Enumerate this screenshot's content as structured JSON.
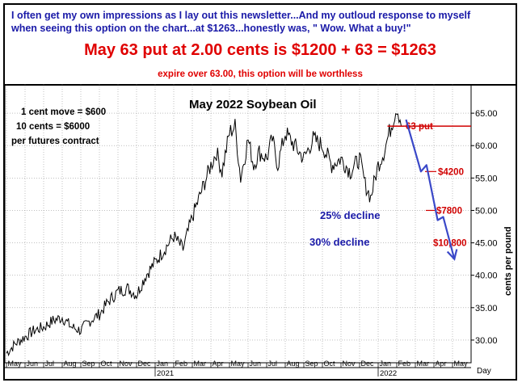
{
  "header": {
    "line1": "I often get my own impressions as I lay out this newsletter...And my outloud response to myself",
    "line2": "when seeing this option on the chart...at $1263...honestly was, \" Wow. What a buy!\"",
    "headline": "May 63 put at 2.00 cents is $1200 + 63 = $1263",
    "subline": "expire over 63.00, this option will be worthless"
  },
  "chart_data": {
    "type": "line",
    "title": "May 2022 Soybean Oil",
    "ylabel": "cents per pound",
    "xlabel": "Day",
    "ylim": [
      26.5,
      69.5
    ],
    "yticks": [
      30,
      35,
      40,
      45,
      50,
      55,
      60,
      65
    ],
    "ytick_labels": [
      "30.00",
      "35.00",
      "40.00",
      "45.00",
      "50.00",
      "55.00",
      "60.00",
      "65.00"
    ],
    "month_labels": [
      "May",
      "Jun",
      "Jul",
      "Aug",
      "Sep",
      "Oct",
      "Nov",
      "Dec",
      "Jan",
      "Feb",
      "Mar",
      "Apr",
      "May",
      "Jun",
      "Jul",
      "Aug",
      "Sep",
      "Oct",
      "Nov",
      "Dec",
      "Jan",
      "Feb",
      "Mar",
      "Apr",
      "May"
    ],
    "year_labels": [
      {
        "label": "2021",
        "month_index": 8
      },
      {
        "label": "2022",
        "month_index": 20
      }
    ],
    "series": [
      {
        "name": "",
        "x": [
          0,
          0.5,
          1,
          1.5,
          2,
          2.5,
          3,
          3.5,
          4,
          4.5,
          5,
          5.5,
          6,
          6.5,
          7,
          7.5,
          8,
          8.5,
          9,
          9.5,
          10,
          10.5,
          11,
          11.3,
          11.6,
          12,
          12.3,
          12.6,
          13,
          13.3,
          13.6,
          14,
          14.3,
          14.6,
          15,
          15.5,
          16,
          16.5,
          17,
          17.5,
          18,
          18.5,
          19,
          19.3,
          19.6,
          20,
          20.3,
          20.6,
          21,
          21.3
        ],
        "y": [
          28,
          29.5,
          30.5,
          31.5,
          32,
          33,
          33.5,
          32,
          31.5,
          33,
          34,
          36,
          37.5,
          38,
          37,
          40,
          42,
          44,
          46,
          44,
          49,
          53,
          57,
          59,
          56,
          62,
          63,
          55,
          61,
          57,
          59,
          58,
          61,
          57,
          62,
          60,
          58,
          61,
          60,
          57,
          58,
          56,
          58,
          54,
          52,
          57,
          59,
          62,
          66,
          63
        ]
      }
    ],
    "projection": {
      "x": [
        21.5,
        22.3,
        22.6,
        23.2,
        23.5,
        24.1
      ],
      "y": [
        64,
        56,
        57,
        48.5,
        49,
        42.5
      ]
    },
    "annotations": {
      "cent_move": "1 cent move = $600",
      "ten_cents": "10 cents = $6000",
      "per_contract": "per futures contract",
      "put_label": "63 put",
      "put_level": 63,
      "put_x_start": 20.5,
      "v4200": "$4200",
      "v4200_y": 56,
      "v7800": "$7800",
      "v7800_y": 50,
      "v10800": "$10,800",
      "v10800_y": 45,
      "decline25": "25% decline",
      "decline30": "30% decline"
    }
  }
}
